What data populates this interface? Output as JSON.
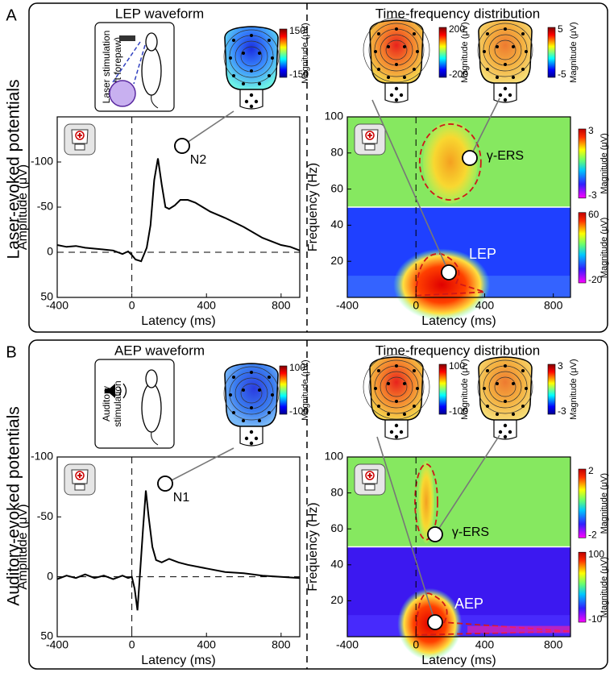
{
  "panels": [
    {
      "letter": "A",
      "row_label": "Laser-evoked potentials",
      "waveform": {
        "title": "LEP waveform",
        "stimulus": [
          "Laser stimulation",
          "(Left forepaw)"
        ],
        "topo_colorbar": {
          "max": 150,
          "min": -150,
          "label": "Magnitude (μV)"
        },
        "peak_label": "N2",
        "y_label": "Amplitude (μV)",
        "x_label": "Latency (ms)",
        "xlim": [
          -400,
          900
        ],
        "xticks": [
          -400,
          0,
          400,
          800
        ],
        "ylim": [
          -150,
          50
        ],
        "yticks": [
          -100,
          -50,
          0,
          50
        ],
        "x": [
          -400,
          -350,
          -300,
          -250,
          -200,
          -150,
          -100,
          -50,
          -20,
          0,
          20,
          50,
          80,
          100,
          120,
          140,
          160,
          180,
          200,
          230,
          260,
          300,
          340,
          380,
          420,
          500,
          600,
          700,
          800,
          850,
          900
        ],
        "values": [
          -8,
          -6,
          -7,
          -5,
          -4,
          -3,
          -2,
          2,
          -1,
          3,
          8,
          10,
          -5,
          -30,
          -80,
          -104,
          -75,
          -50,
          -48,
          -52,
          -58,
          -58,
          -55,
          -50,
          -45,
          -38,
          -28,
          -16,
          -8,
          -6,
          -2
        ]
      },
      "time_frequency": {
        "title": "Time-frequency distribution",
        "topo_colorbars": [
          {
            "max": 200,
            "min": -200,
            "label": "Magnitude (μV)"
          },
          {
            "max": 5,
            "min": -5,
            "label": "Magnitude (μV)"
          }
        ],
        "band_labels": [
          "γ-ERS",
          "LEP"
        ],
        "y_label": "Frequency (Hz)",
        "x_label": "Latency (ms)",
        "xlim": [
          -400,
          900
        ],
        "xticks": [
          -400,
          0,
          400,
          800
        ],
        "ylim": [
          0,
          100
        ],
        "yticks": [
          20,
          40,
          60,
          80,
          100
        ],
        "colorbars": [
          {
            "max": 3,
            "min": -3,
            "label": "Magnitude (μV)"
          },
          {
            "max": 60,
            "min": -20,
            "label": "Magnitude (μV)"
          }
        ]
      }
    },
    {
      "letter": "B",
      "row_label": "Auditory-evoked potentials",
      "waveform": {
        "title": "AEP waveform",
        "stimulus": [
          "Auditory",
          "stimulation"
        ],
        "topo_colorbar": {
          "max": 100,
          "min": -100,
          "label": "Magnitude (μV)"
        },
        "peak_label": "N1",
        "y_label": "Amplitude (μV)",
        "x_label": "Latency (ms)",
        "xlim": [
          -400,
          900
        ],
        "xticks": [
          -400,
          0,
          400,
          800
        ],
        "ylim": [
          -100,
          50
        ],
        "yticks": [
          -100,
          -50,
          0,
          50
        ],
        "x": [
          -400,
          -350,
          -300,
          -250,
          -200,
          -150,
          -100,
          -50,
          -20,
          0,
          15,
          30,
          45,
          60,
          75,
          90,
          110,
          130,
          160,
          200,
          250,
          300,
          400,
          500,
          600,
          700,
          800,
          900
        ],
        "values": [
          2,
          -1,
          1,
          -2,
          1,
          -1,
          2,
          -1,
          1,
          0,
          10,
          28,
          -5,
          -40,
          -72,
          -50,
          -25,
          -14,
          -12,
          -15,
          -12,
          -10,
          -7,
          -4,
          -3,
          -1,
          0,
          1
        ]
      },
      "time_frequency": {
        "title": "Time-frequency distribution",
        "topo_colorbars": [
          {
            "max": 100,
            "min": -100,
            "label": "Magnitude (μV)"
          },
          {
            "max": 3,
            "min": -3,
            "label": "Magnitude (μV)"
          }
        ],
        "band_labels": [
          "γ-ERS",
          "AEP"
        ],
        "y_label": "Frequency (Hz)",
        "x_label": "Latency (ms)",
        "xlim": [
          -400,
          900
        ],
        "xticks": [
          -400,
          0,
          400,
          800
        ],
        "ylim": [
          0,
          100
        ],
        "yticks": [
          20,
          40,
          60,
          80,
          100
        ],
        "colorbars": [
          {
            "max": 2,
            "min": -2,
            "label": "Magnitude (μV)"
          },
          {
            "max": 100,
            "min": -10,
            "label": "Magnitude (μV)"
          }
        ]
      }
    }
  ]
}
